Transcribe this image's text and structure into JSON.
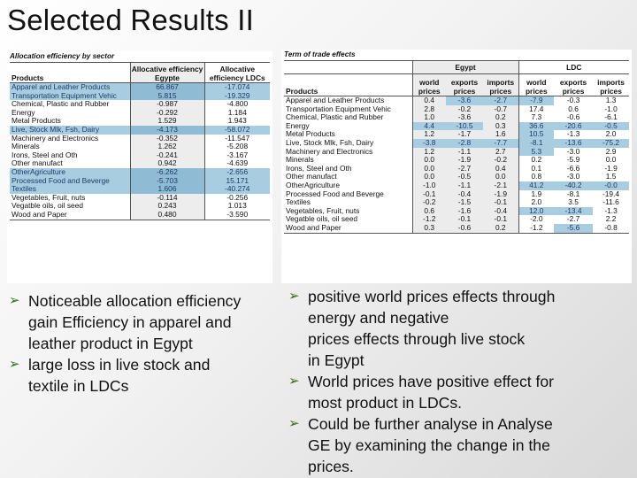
{
  "title": "Selected Results II",
  "allocation": {
    "caption": "Allocation efficiency by sector",
    "headers": [
      "Products",
      "Allocative efficiency Egypte",
      "Allocative efficiency LDCs"
    ],
    "rows": [
      {
        "product": "Apparel and Leather Products",
        "egypt": "66.867",
        "ldc": "-17.074",
        "highlight": true
      },
      {
        "product": "Transportation Equipment Vehic",
        "egypt": "5.815",
        "ldc": "-19.329",
        "highlight": true
      },
      {
        "product": "Chemical, Plastic and Rubber",
        "egypt": "-0.987",
        "ldc": "-4.800",
        "highlight": false
      },
      {
        "product": "Energy",
        "egypt": "-0.292",
        "ldc": "1.184",
        "highlight": false
      },
      {
        "product": "Metal Products",
        "egypt": "1.529",
        "ldc": "1.943",
        "highlight": false
      },
      {
        "product": "Live, Stock Mlk, Fsh, Dairy",
        "egypt": "-4.173",
        "ldc": "-58.072",
        "highlight": true
      },
      {
        "product": "Machinery and Electronics",
        "egypt": "-0.352",
        "ldc": "-11.547",
        "highlight": false
      },
      {
        "product": "Minerals",
        "egypt": "1.262",
        "ldc": "-5.208",
        "highlight": false
      },
      {
        "product": "Irons, Steel and Oth",
        "egypt": "-0.241",
        "ldc": "-3.167",
        "highlight": false
      },
      {
        "product": "Other manufact",
        "egypt": "0.942",
        "ldc": "-4.639",
        "highlight": false
      },
      {
        "product": "OtherAgriculture",
        "egypt": "-6.262",
        "ldc": "-2.656",
        "highlight": true
      },
      {
        "product": "Processed Food and Beverge",
        "egypt": "-5.703",
        "ldc": "15.171",
        "highlight": true
      },
      {
        "product": "Textiles",
        "egypt": "1.606",
        "ldc": "-40.274",
        "highlight": true
      },
      {
        "product": "Vegetables, Fruit, nuts",
        "egypt": "-0.114",
        "ldc": "-0.256",
        "highlight": false
      },
      {
        "product": "Vegatble oils, oil seed",
        "egypt": "0.243",
        "ldc": "1.013",
        "highlight": false
      },
      {
        "product": "Wood and Paper",
        "egypt": "0.480",
        "ldc": "-3.590",
        "highlight": false
      }
    ]
  },
  "tot": {
    "caption": "Term of trade effects",
    "group_egypt": "Egypt",
    "group_ldc": "LDC",
    "headers": [
      "Products",
      "world prices",
      "exports prices",
      "imports prices",
      "world prices",
      "exports prices",
      "imports prices"
    ],
    "rows": [
      {
        "product": "Apparel and Leather Products",
        "v": [
          "0.4",
          "-3.6",
          "-2.7",
          "-7.9",
          "-0.3",
          "1.3"
        ],
        "hl": [
          false,
          true,
          true,
          true,
          false,
          false
        ]
      },
      {
        "product": "Transportation Equipment Vehic",
        "v": [
          "2.8",
          "-0.2",
          "-0.7",
          "17.4",
          "0.6",
          "-1.0"
        ],
        "hl": [
          false,
          false,
          false,
          false,
          false,
          false
        ]
      },
      {
        "product": "Chemical, Plastic and Rubber",
        "v": [
          "1.0",
          "-3.6",
          "0.2",
          "7.3",
          "-0.6",
          "-6.1"
        ],
        "hl": [
          false,
          false,
          false,
          false,
          false,
          false
        ]
      },
      {
        "product": "Energy",
        "v": [
          "4.4",
          "-10.5",
          "0.3",
          "36.6",
          "-20.6",
          "-0.5"
        ],
        "hl": [
          true,
          true,
          false,
          true,
          true,
          true
        ]
      },
      {
        "product": "Metal Products",
        "v": [
          "1.2",
          "-1.7",
          "1.6",
          "10.5",
          "-1.3",
          "2.0"
        ],
        "hl": [
          false,
          false,
          false,
          true,
          false,
          false
        ]
      },
      {
        "product": "Live, Stock Mlk, Fsh, Dairy",
        "v": [
          "-3.8",
          "-2.8",
          "-7.7",
          "-8.1",
          "-13.6",
          "-75.2"
        ],
        "hl": [
          true,
          true,
          true,
          true,
          true,
          true
        ]
      },
      {
        "product": "Machinery and Electronics",
        "v": [
          "1.2",
          "-1.1",
          "2.7",
          "5.3",
          "-3.0",
          "2.9"
        ],
        "hl": [
          false,
          false,
          false,
          true,
          false,
          false
        ]
      },
      {
        "product": "Minerals",
        "v": [
          "0.0",
          "-1.9",
          "-0.2",
          "0.2",
          "-5.9",
          "0.0"
        ],
        "hl": [
          false,
          false,
          false,
          false,
          false,
          false
        ]
      },
      {
        "product": "Irons, Steel and Oth",
        "v": [
          "0.0",
          "-2.7",
          "0.4",
          "0.1",
          "-6.6",
          "-1.9"
        ],
        "hl": [
          false,
          false,
          false,
          false,
          false,
          false
        ]
      },
      {
        "product": "Other manufact",
        "v": [
          "0.0",
          "-0.5",
          "0.0",
          "0.8",
          "-3.0",
          "1.5"
        ],
        "hl": [
          false,
          false,
          false,
          false,
          false,
          false
        ]
      },
      {
        "product": "OtherAgriculture",
        "v": [
          "-1.0",
          "-1.1",
          "-2.1",
          "41.2",
          "-40.2",
          "-0.0"
        ],
        "hl": [
          false,
          false,
          false,
          true,
          true,
          true
        ]
      },
      {
        "product": "Processed Food and Beverge",
        "v": [
          "-0.1",
          "-0.4",
          "-1.9",
          "1.9",
          "-8.1",
          "-19.4"
        ],
        "hl": [
          false,
          false,
          false,
          false,
          false,
          false
        ]
      },
      {
        "product": "Textiles",
        "v": [
          "-0.2",
          "-1.5",
          "-0.1",
          "2.0",
          "3.5",
          "-11.6"
        ],
        "hl": [
          false,
          false,
          false,
          false,
          false,
          false
        ]
      },
      {
        "product": "Vegetables, Fruit, nuts",
        "v": [
          "0.6",
          "-1.6",
          "-0.4",
          "12.0",
          "-13.4",
          "-1.3"
        ],
        "hl": [
          false,
          false,
          false,
          true,
          true,
          false
        ]
      },
      {
        "product": "Vegatble oils, oil seed",
        "v": [
          "-1.2",
          "-0.1",
          "-0.1",
          "-2.0",
          "-2.7",
          "2.2"
        ],
        "hl": [
          false,
          false,
          false,
          false,
          false,
          false
        ]
      },
      {
        "product": "Wood and Paper",
        "v": [
          "0.3",
          "-0.6",
          "0.2",
          "-1.2",
          "-5.6",
          "-0.8"
        ],
        "hl": [
          false,
          false,
          false,
          false,
          true,
          false
        ]
      }
    ]
  },
  "bullets_left": [
    {
      "lines": [
        "Noticeable allocation efficiency",
        "gain Efficiency in apparel and",
        "leather product in Egypt"
      ]
    },
    {
      "lines": [
        "large loss in live stock and",
        "textile in LDCs"
      ]
    }
  ],
  "bullets_right": [
    {
      "lines": [
        "positive world prices effects through",
        "energy  and negative",
        "prices effects through live stock",
        "in Egypt"
      ]
    },
    {
      "lines": [
        "World prices have positive  effect for",
        "most product in LDCs."
      ]
    },
    {
      "lines": [
        "Could be further analyse in Analyse",
        "GE by examining the change in the",
        "prices."
      ]
    }
  ],
  "bullet_marker": "arrow-bullet-icon",
  "colors": {
    "highlight": "#a9cde0",
    "highlight_text": "#1b3b6b",
    "bullet": "#3b6b1a"
  }
}
